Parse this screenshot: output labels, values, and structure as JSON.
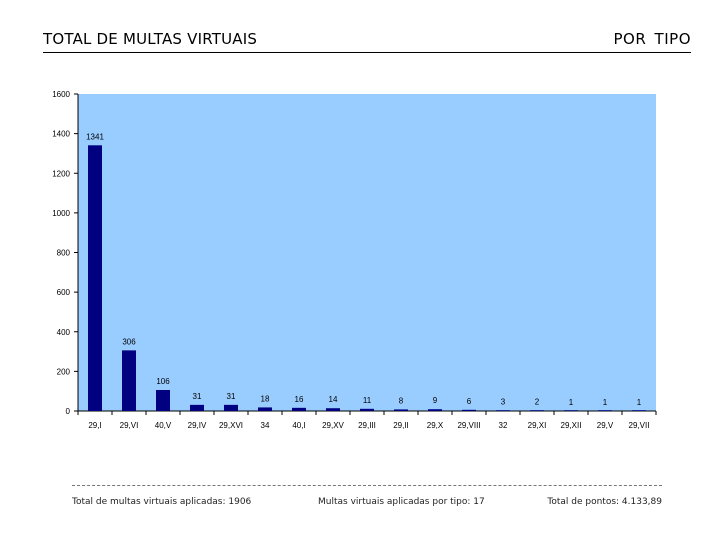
{
  "header": {
    "title_left": "TOTAL DE MULTAS VIRTUAIS",
    "title_right": "POR TIPO"
  },
  "footer": {
    "total_multas": "Total de multas virtuais aplicadas: 1906",
    "por_tipo": "Multas virtuais aplicadas por tipo: 17",
    "total_pontos": "Total de pontos: 4.133,89"
  },
  "colors": {
    "plot_background": "#99ccff",
    "bar": "#000080",
    "axis": "#000000"
  },
  "chart_data": {
    "type": "bar",
    "title": "",
    "xlabel": "",
    "ylabel": "",
    "ylim": [
      0,
      1600
    ],
    "yticks": [
      "0",
      "200",
      "400",
      "600",
      "800",
      "1000",
      "1200",
      "1400",
      "1600"
    ],
    "categories": [
      "29,I",
      "29,VI",
      "40,V",
      "29,IV",
      "29,XVI",
      "34",
      "40,I",
      "29,XV",
      "29,III",
      "29,II",
      "29,X",
      "29,VIII",
      "32",
      "29,XI",
      "29,XII",
      "29,V",
      "29,VII"
    ],
    "values": [
      1341,
      306,
      106,
      31,
      31,
      18,
      16,
      14,
      11,
      8,
      9,
      6,
      3,
      2,
      1,
      1,
      1
    ],
    "value_labels": [
      "1341",
      "306",
      "106",
      "31",
      "31",
      "18",
      "16",
      "14",
      "11",
      "8",
      "9",
      "6",
      "3",
      "2",
      "1",
      "1",
      "1"
    ],
    "grid": false,
    "legend": "none"
  }
}
